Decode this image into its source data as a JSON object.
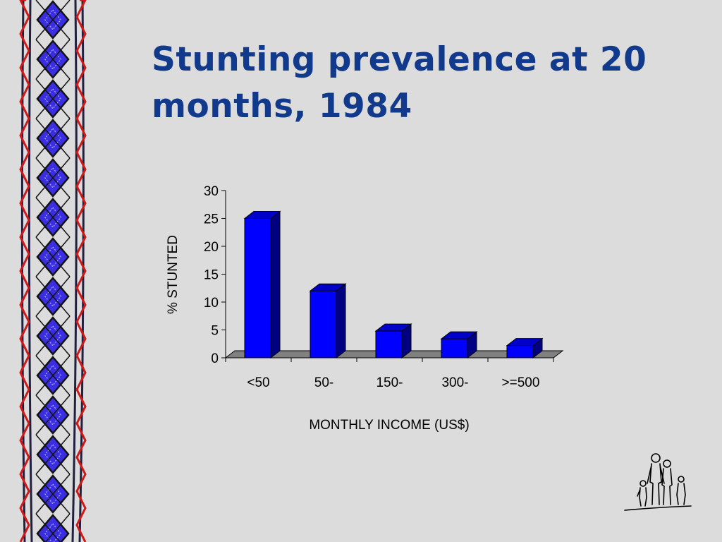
{
  "slide": {
    "title": "Stunting prevalence at 20 months, 1984",
    "logo_icon": "family-figures-icon",
    "border_icon": "woven-diamond-border"
  },
  "colors": {
    "background": "#dcdcdc",
    "title": "#123a8c",
    "bar_front": "#0000ff",
    "bar_side": "#000080",
    "bar_top": "#0000c8",
    "floor": "#808080"
  },
  "chart_data": {
    "type": "bar",
    "title": "",
    "xlabel": "MONTHLY INCOME (US$)",
    "ylabel": "% STUNTED",
    "categories": [
      "<50",
      "50-",
      "150-",
      "300-",
      ">=500"
    ],
    "values": [
      25,
      12,
      4.8,
      3.4,
      2.2
    ],
    "ylim": [
      0,
      30
    ],
    "yticks": [
      "0",
      "5",
      "10",
      "15",
      "20",
      "25",
      "30"
    ],
    "grid": false,
    "legend": "none",
    "style": "3d-column"
  }
}
